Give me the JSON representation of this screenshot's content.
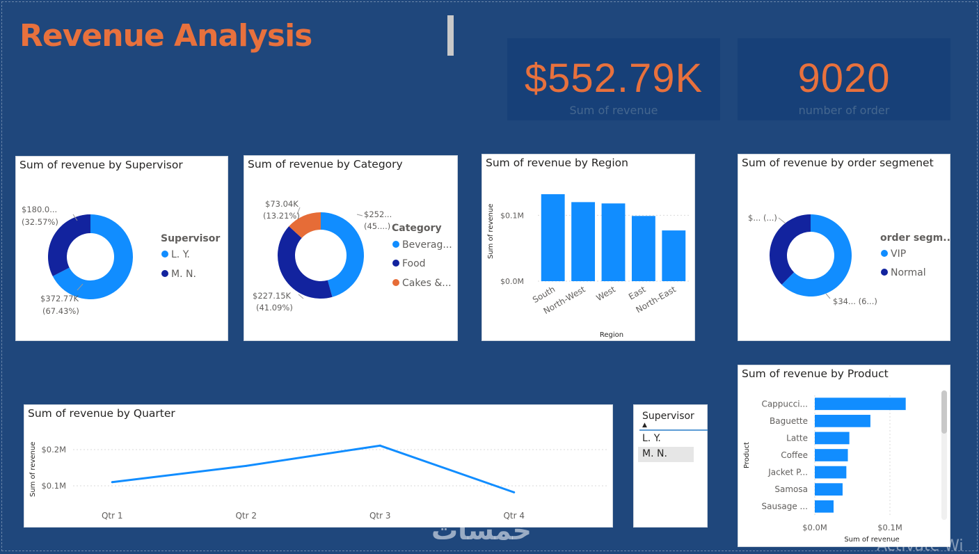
{
  "header": {
    "title": "Revenue Analysis"
  },
  "kpis": [
    {
      "value": "$552.79K",
      "label": "Sum of revenue"
    },
    {
      "value": "9020",
      "label": "number of order"
    }
  ],
  "chart_data": [
    {
      "id": "supervisor",
      "type": "pie",
      "title": "Sum of revenue by Supervisor",
      "legend_title": "Supervisor",
      "legend": [
        "L. Y.",
        "M. N."
      ],
      "slices": [
        {
          "name": "L. Y.",
          "value": 372.77,
          "label": "$372.77K",
          "pct": "(67.43%)",
          "color": "#118dff"
        },
        {
          "name": "M. N.",
          "value": 180.02,
          "label": "$180.0...",
          "pct": "(32.57%)",
          "color": "#12239e"
        }
      ]
    },
    {
      "id": "category",
      "type": "pie",
      "title": "Sum of revenue by Category",
      "legend_title": "Category",
      "legend": [
        "Beverag...",
        "Food",
        "Cakes &..."
      ],
      "slices": [
        {
          "name": "Beverag...",
          "value": 252.6,
          "label": "$252...",
          "pct": "(45....)",
          "color": "#118dff"
        },
        {
          "name": "Food",
          "value": 227.15,
          "label": "$227.15K",
          "pct": "(41.09%)",
          "color": "#12239e"
        },
        {
          "name": "Cakes &...",
          "value": 73.04,
          "label": "$73.04K",
          "pct": "(13.21%)",
          "color": "#e66c37"
        }
      ]
    },
    {
      "id": "region",
      "type": "bar",
      "title": "Sum of revenue by Region",
      "xlabel": "Region",
      "ylabel": "Sum of revenue",
      "categories": [
        "South",
        "North-West",
        "West",
        "East",
        "North-East"
      ],
      "values": [
        0.132,
        0.12,
        0.118,
        0.099,
        0.077
      ],
      "ylim": [
        0,
        0.15
      ],
      "yticks": [
        {
          "v": 0,
          "label": "$0.0M"
        },
        {
          "v": 0.1,
          "label": "$0.1M"
        }
      ],
      "color": "#118dff"
    },
    {
      "id": "segment",
      "type": "pie",
      "title": "Sum of revenue by order segmenet",
      "legend_title": "order segm...",
      "legend": [
        "VIP",
        "Normal"
      ],
      "slices": [
        {
          "name": "VIP",
          "value": 345,
          "label": "$34...",
          "pct": "(6...)",
          "color": "#118dff"
        },
        {
          "name": "Normal",
          "value": 207.79,
          "label": "$...",
          "pct": "(...)",
          "color": "#12239e"
        }
      ]
    },
    {
      "id": "quarter",
      "type": "line",
      "title": "Sum of revenue by Quarter",
      "xlabel": "",
      "ylabel": "Sum of revenue",
      "categories": [
        "Qtr 1",
        "Qtr 2",
        "Qtr 3",
        "Qtr 4"
      ],
      "values": [
        0.11,
        0.155,
        0.211,
        0.082
      ],
      "ylim": [
        0.05,
        0.25
      ],
      "yticks": [
        {
          "v": 0.1,
          "label": "$0.1M"
        },
        {
          "v": 0.2,
          "label": "$0.2M"
        }
      ],
      "color": "#118dff"
    },
    {
      "id": "product",
      "type": "bar",
      "orientation": "horizontal",
      "title": "Sum of revenue by Product",
      "xlabel": "Sum of revenue",
      "ylabel": "Product",
      "categories": [
        "Cappucci...",
        "Baguette",
        "Latte",
        "Coffee",
        "Jacket P...",
        "Samosa",
        "Sausage ..."
      ],
      "values": [
        0.121,
        0.074,
        0.046,
        0.044,
        0.042,
        0.037,
        0.025
      ],
      "xlim": [
        0,
        0.15
      ],
      "xticks": [
        {
          "v": 0,
          "label": "$0.0M"
        },
        {
          "v": 0.1,
          "label": "$0.1M"
        }
      ],
      "color": "#118dff"
    }
  ],
  "slicer": {
    "title": "Supervisor",
    "items": [
      "L. Y.",
      "M. N."
    ]
  },
  "watermark": "خمسات",
  "os_notice": "Activate Wi"
}
